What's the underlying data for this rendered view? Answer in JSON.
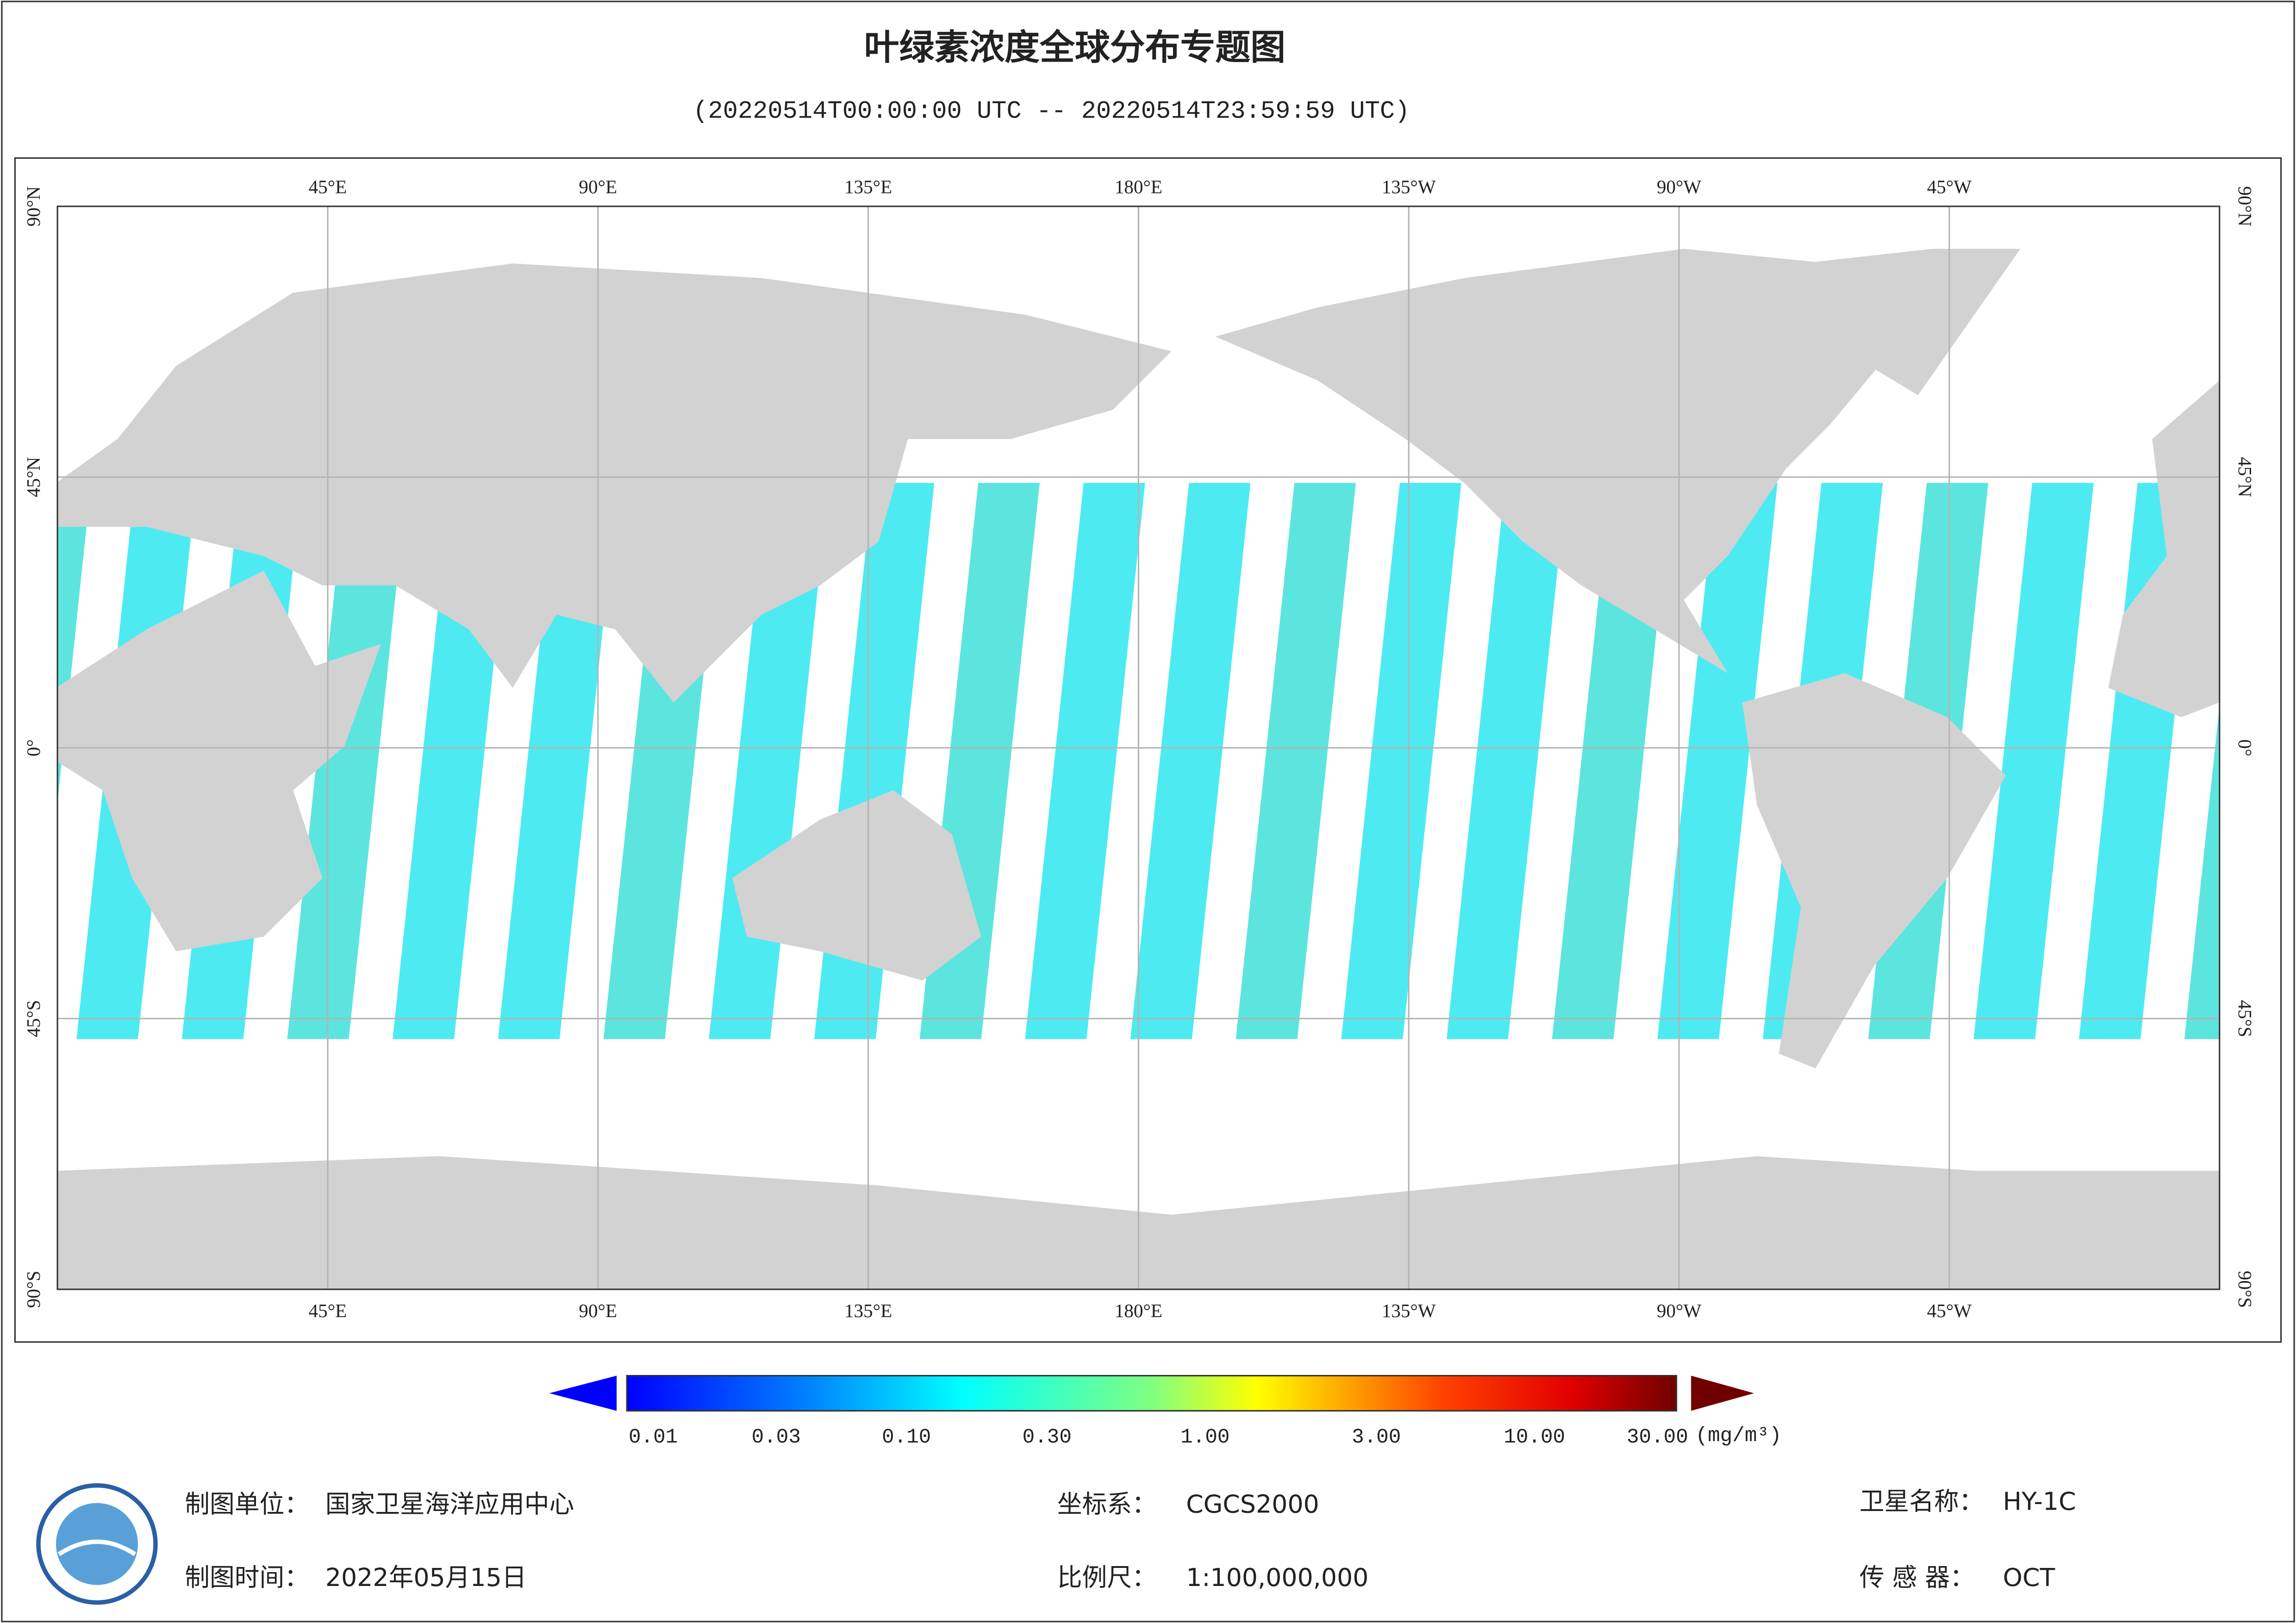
{
  "header": {
    "title": "叶绿素浓度全球分布专题图",
    "subtitle": "(20220514T00:00:00 UTC -- 20220514T23:59:59 UTC)"
  },
  "map": {
    "lon_labels": [
      "45°E",
      "90°E",
      "135°E",
      "180°E",
      "135°W",
      "90°W",
      "45°W"
    ],
    "lat_labels": [
      "90°N",
      "45°N",
      "0°",
      "45°S",
      "90°S"
    ]
  },
  "colorbar": {
    "ticks": [
      "0.01",
      "0.03",
      "0.10",
      "0.30",
      "1.00",
      "3.00",
      "10.00",
      "30.00"
    ],
    "unit": "(mg/m³)"
  },
  "footer": {
    "unit_label": "制图单位：",
    "unit": "国家卫星海洋应用中心",
    "time_label": "制图时间：",
    "time": "2022年05月15日",
    "crs_label": "坐标系：",
    "crs": "CGCS2000",
    "scale_label": "比例尺：",
    "scale": "1:100,000,000",
    "satellite_label": "卫星名称：",
    "satellite": "HY-1C",
    "sensor_label": "传 感 器：",
    "sensor": "OCT"
  }
}
